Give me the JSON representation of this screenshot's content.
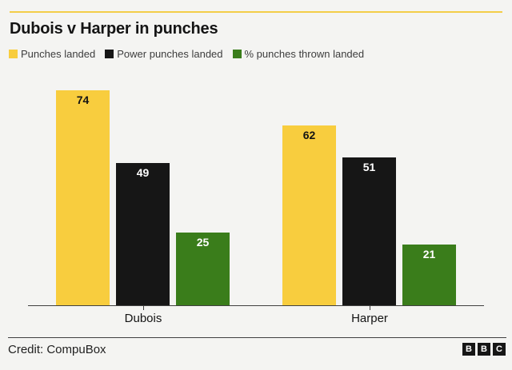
{
  "header": {
    "title": "Dubois v Harper in punches"
  },
  "legend": [
    {
      "label": "Punches landed",
      "color": "#f8cd3e"
    },
    {
      "label": "Power punches landed",
      "color": "#161616"
    },
    {
      "label": "% punches thrown landed",
      "color": "#3a7d1b"
    }
  ],
  "chart_data": {
    "type": "bar",
    "title": "Dubois v Harper in punches",
    "categories": [
      "Dubois",
      "Harper"
    ],
    "series": [
      {
        "name": "Punches landed",
        "color": "#f8cd3e",
        "label_color": "#141414",
        "values": [
          74,
          62
        ]
      },
      {
        "name": "Power punches landed",
        "color": "#161616",
        "label_color": "#ffffff",
        "values": [
          49,
          51
        ]
      },
      {
        "name": "% punches thrown landed",
        "color": "#3a7d1b",
        "label_color": "#ffffff",
        "values": [
          25,
          21
        ]
      }
    ],
    "ylim": [
      0,
      74
    ],
    "xlabel": "",
    "ylabel": "",
    "grid": false,
    "legend_position": "top",
    "value_labels": "inside-top"
  },
  "footer": {
    "credit": "Credit: CompuBox",
    "logo_letters": [
      "B",
      "B",
      "C"
    ]
  },
  "colors": {
    "background": "#f4f4f2",
    "accent_rule": "#f3cd49",
    "axis": "#404040",
    "title_text": "#141414",
    "legend_text": "#3d3d3d"
  }
}
